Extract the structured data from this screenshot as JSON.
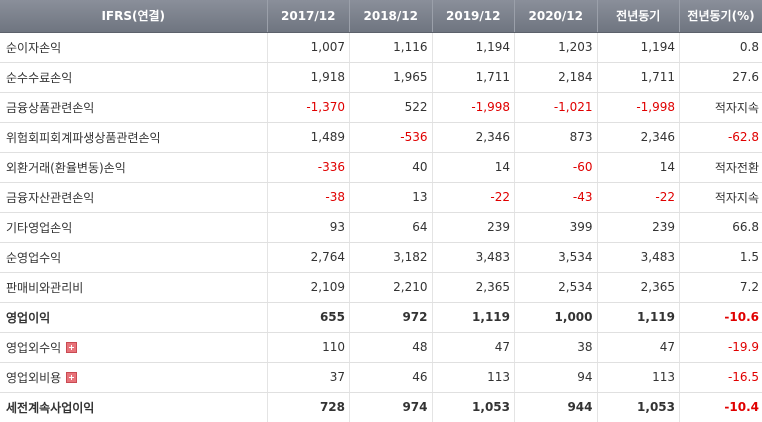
{
  "table": {
    "headers": [
      "IFRS(연결)",
      "2017/12",
      "2018/12",
      "2019/12",
      "2020/12",
      "전년동기",
      "전년동기(%)"
    ],
    "rows": [
      {
        "label": "순이자손익",
        "bold": false,
        "expand": false,
        "cells": [
          {
            "v": "1,007",
            "neg": false
          },
          {
            "v": "1,116",
            "neg": false
          },
          {
            "v": "1,194",
            "neg": false
          },
          {
            "v": "1,203",
            "neg": false
          },
          {
            "v": "1,194",
            "neg": false
          },
          {
            "v": "0.8",
            "neg": false
          }
        ]
      },
      {
        "label": "순수수료손익",
        "bold": false,
        "expand": false,
        "cells": [
          {
            "v": "1,918",
            "neg": false
          },
          {
            "v": "1,965",
            "neg": false
          },
          {
            "v": "1,711",
            "neg": false
          },
          {
            "v": "2,184",
            "neg": false
          },
          {
            "v": "1,711",
            "neg": false
          },
          {
            "v": "27.6",
            "neg": false
          }
        ]
      },
      {
        "label": "금융상품관련손익",
        "bold": false,
        "expand": false,
        "cells": [
          {
            "v": "-1,370",
            "neg": true
          },
          {
            "v": "522",
            "neg": false
          },
          {
            "v": "-1,998",
            "neg": true
          },
          {
            "v": "-1,021",
            "neg": true
          },
          {
            "v": "-1,998",
            "neg": true
          },
          {
            "v": "적자지속",
            "neg": false
          }
        ]
      },
      {
        "label": "위험회피회계파생상품관련손익",
        "bold": false,
        "expand": false,
        "cells": [
          {
            "v": "1,489",
            "neg": false
          },
          {
            "v": "-536",
            "neg": true
          },
          {
            "v": "2,346",
            "neg": false
          },
          {
            "v": "873",
            "neg": false
          },
          {
            "v": "2,346",
            "neg": false
          },
          {
            "v": "-62.8",
            "neg": true
          }
        ]
      },
      {
        "label": "외환거래(환율변동)손익",
        "bold": false,
        "expand": false,
        "cells": [
          {
            "v": "-336",
            "neg": true
          },
          {
            "v": "40",
            "neg": false
          },
          {
            "v": "14",
            "neg": false
          },
          {
            "v": "-60",
            "neg": true
          },
          {
            "v": "14",
            "neg": false
          },
          {
            "v": "적자전환",
            "neg": false
          }
        ]
      },
      {
        "label": "금융자산관련손익",
        "bold": false,
        "expand": false,
        "cells": [
          {
            "v": "-38",
            "neg": true
          },
          {
            "v": "13",
            "neg": false
          },
          {
            "v": "-22",
            "neg": true
          },
          {
            "v": "-43",
            "neg": true
          },
          {
            "v": "-22",
            "neg": true
          },
          {
            "v": "적자지속",
            "neg": false
          }
        ]
      },
      {
        "label": "기타영업손익",
        "bold": false,
        "expand": false,
        "cells": [
          {
            "v": "93",
            "neg": false
          },
          {
            "v": "64",
            "neg": false
          },
          {
            "v": "239",
            "neg": false
          },
          {
            "v": "399",
            "neg": false
          },
          {
            "v": "239",
            "neg": false
          },
          {
            "v": "66.8",
            "neg": false
          }
        ]
      },
      {
        "label": "순영업수익",
        "bold": false,
        "expand": false,
        "cells": [
          {
            "v": "2,764",
            "neg": false
          },
          {
            "v": "3,182",
            "neg": false
          },
          {
            "v": "3,483",
            "neg": false
          },
          {
            "v": "3,534",
            "neg": false
          },
          {
            "v": "3,483",
            "neg": false
          },
          {
            "v": "1.5",
            "neg": false
          }
        ]
      },
      {
        "label": "판매비와관리비",
        "bold": false,
        "expand": false,
        "cells": [
          {
            "v": "2,109",
            "neg": false
          },
          {
            "v": "2,210",
            "neg": false
          },
          {
            "v": "2,365",
            "neg": false
          },
          {
            "v": "2,534",
            "neg": false
          },
          {
            "v": "2,365",
            "neg": false
          },
          {
            "v": "7.2",
            "neg": false
          }
        ]
      },
      {
        "label": "영업이익",
        "bold": true,
        "expand": false,
        "cells": [
          {
            "v": "655",
            "neg": false
          },
          {
            "v": "972",
            "neg": false
          },
          {
            "v": "1,119",
            "neg": false
          },
          {
            "v": "1,000",
            "neg": false
          },
          {
            "v": "1,119",
            "neg": false
          },
          {
            "v": "-10.6",
            "neg": true
          }
        ]
      },
      {
        "label": "영업외수익",
        "bold": false,
        "expand": true,
        "cells": [
          {
            "v": "110",
            "neg": false
          },
          {
            "v": "48",
            "neg": false
          },
          {
            "v": "47",
            "neg": false
          },
          {
            "v": "38",
            "neg": false
          },
          {
            "v": "47",
            "neg": false
          },
          {
            "v": "-19.9",
            "neg": true
          }
        ]
      },
      {
        "label": "영업외비용",
        "bold": false,
        "expand": true,
        "cells": [
          {
            "v": "37",
            "neg": false
          },
          {
            "v": "46",
            "neg": false
          },
          {
            "v": "113",
            "neg": false
          },
          {
            "v": "94",
            "neg": false
          },
          {
            "v": "113",
            "neg": false
          },
          {
            "v": "-16.5",
            "neg": true
          }
        ]
      },
      {
        "label": "세전계속사업이익",
        "bold": true,
        "expand": false,
        "cells": [
          {
            "v": "728",
            "neg": false
          },
          {
            "v": "974",
            "neg": false
          },
          {
            "v": "1,053",
            "neg": false
          },
          {
            "v": "944",
            "neg": false
          },
          {
            "v": "1,053",
            "neg": false
          },
          {
            "v": "-10.4",
            "neg": true
          }
        ]
      }
    ]
  },
  "icons": {
    "expand": "plus-square-icon"
  },
  "colors": {
    "negative": "#e00000",
    "header_bg": "#7a808b",
    "expand_icon": "#e8737a"
  }
}
